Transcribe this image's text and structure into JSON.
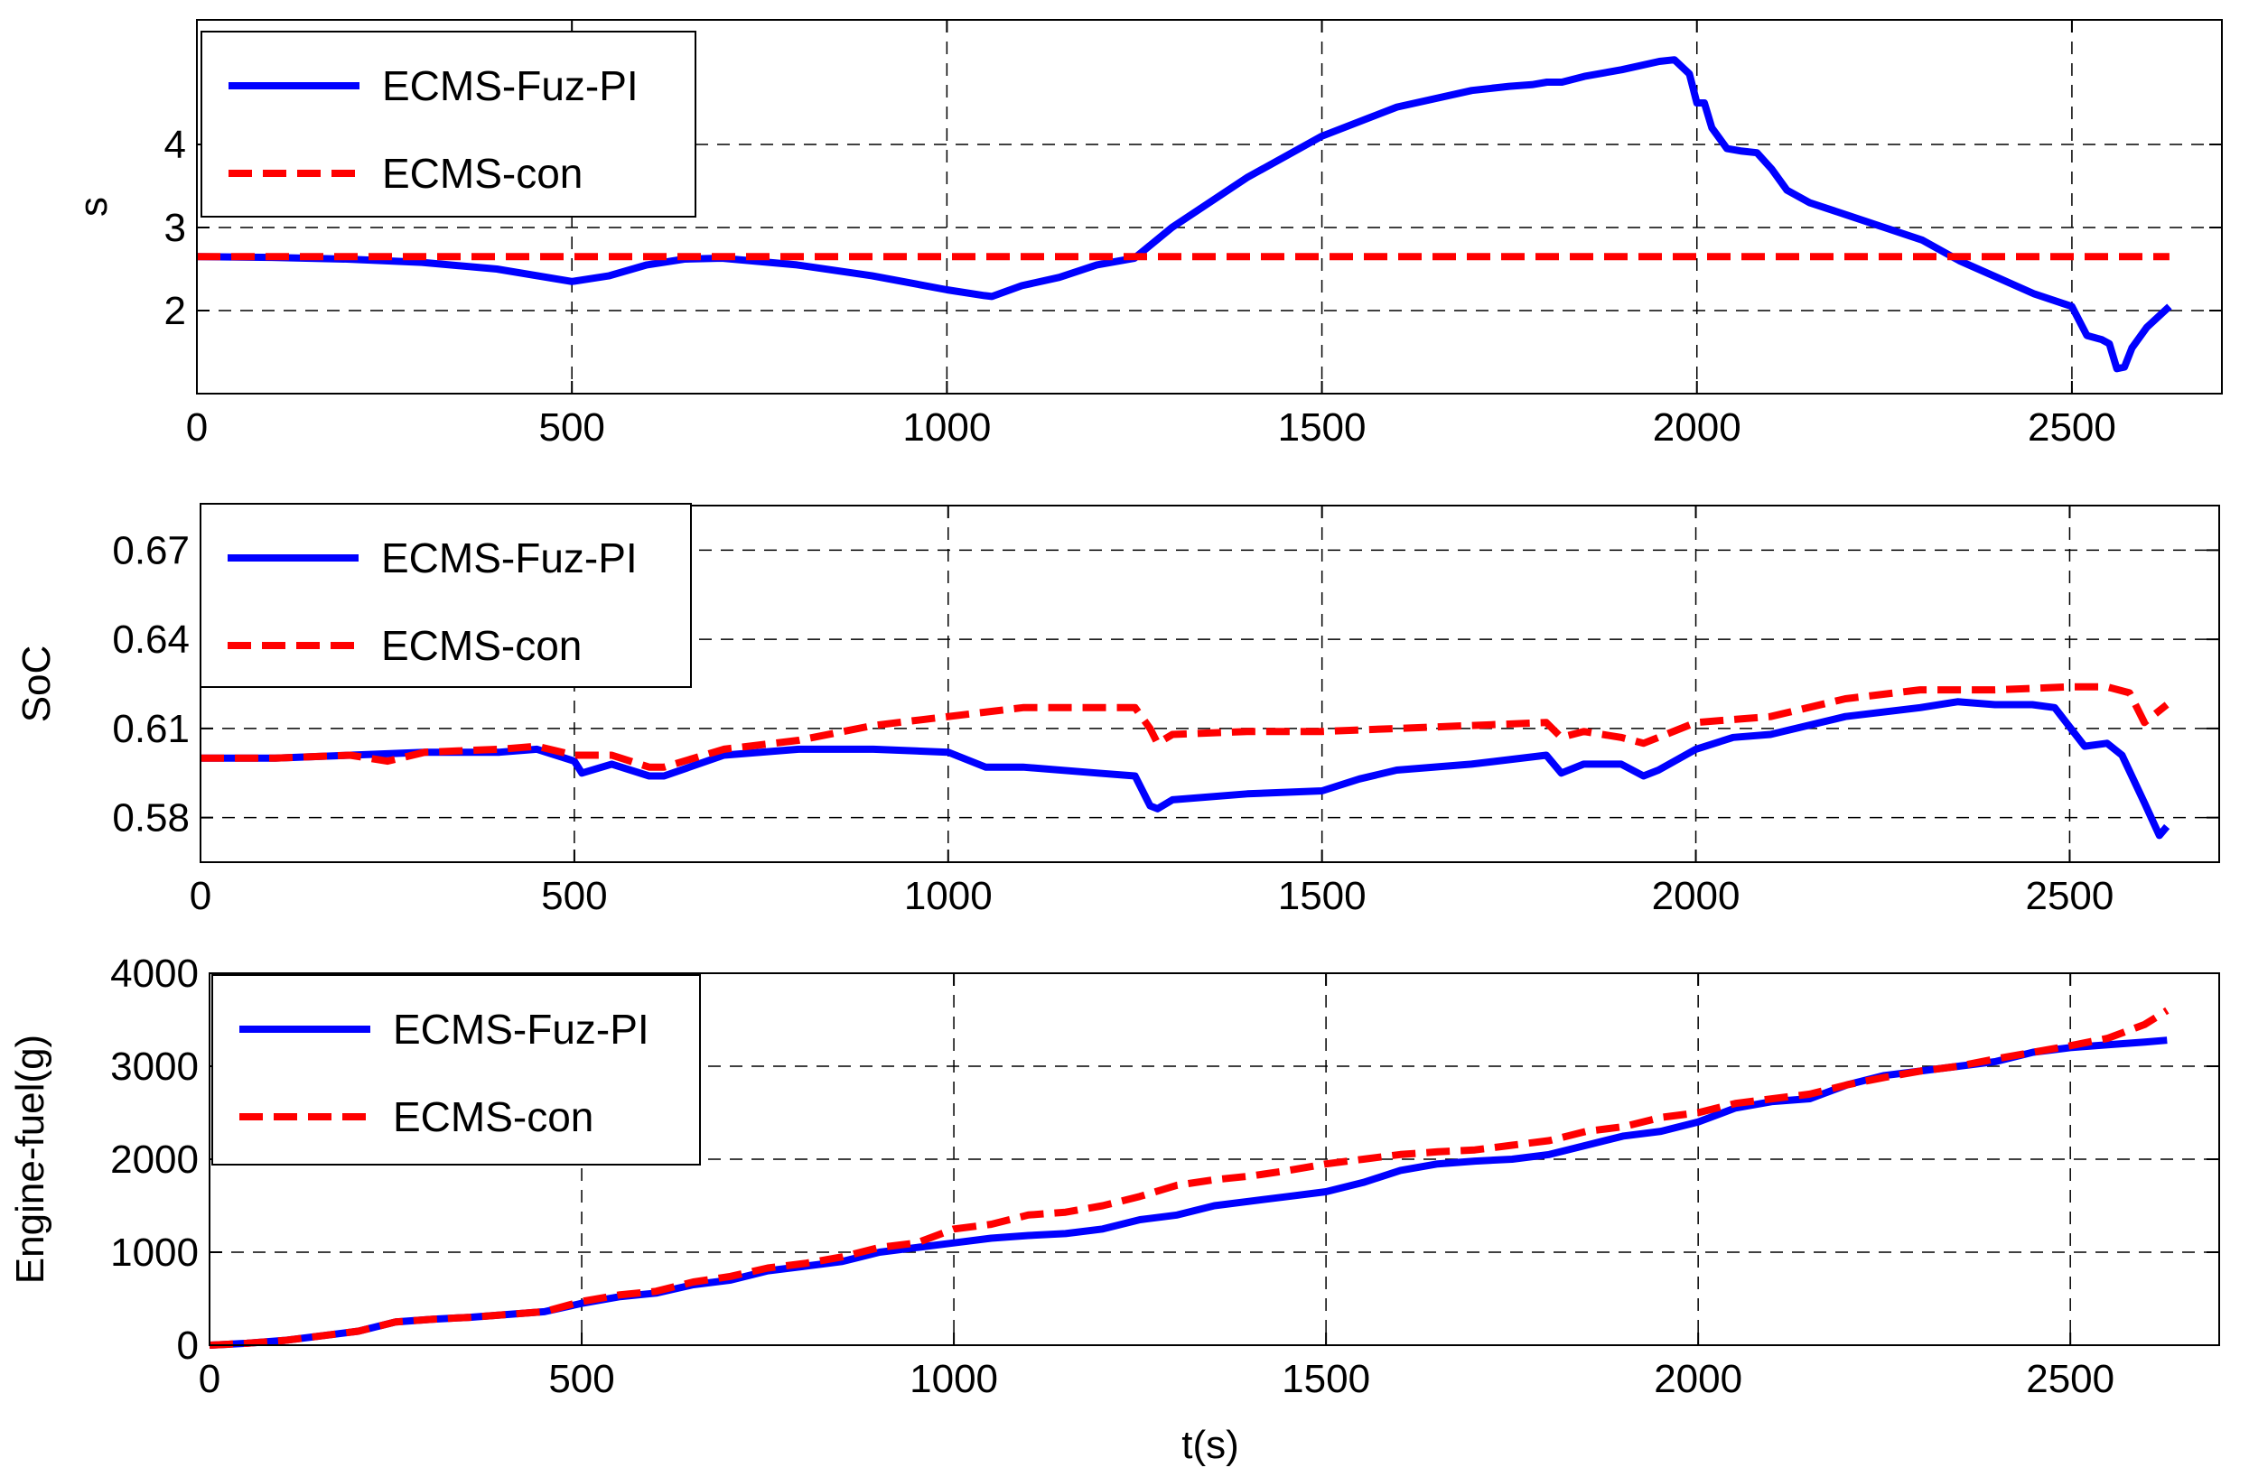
{
  "figure": {
    "xlabel": "t(s)"
  },
  "colors": {
    "fuz": "#0000ff",
    "con": "#ff0000",
    "grid": "#000000",
    "axes": "#000000",
    "background": "#ffffff"
  },
  "chart_data": [
    {
      "type": "line",
      "title": "",
      "xlabel": "",
      "ylabel": "s",
      "xlim": [
        0,
        2700
      ],
      "ylim": [
        1,
        5.5
      ],
      "xticks": [
        0,
        500,
        1000,
        1500,
        2000,
        2500
      ],
      "xtick_labels": [
        "0",
        "500",
        "1000",
        "1500",
        "2000",
        "2500"
      ],
      "yticks": [
        2,
        3,
        4
      ],
      "ytick_labels": [
        "2",
        "3",
        "4"
      ],
      "grid": true,
      "legend": {
        "position": "top-left",
        "entries": [
          "ECMS-Fuz-PI",
          "ECMS-con"
        ]
      },
      "series": [
        {
          "name": "ECMS-Fuz-PI",
          "style": "solid",
          "x": [
            0,
            100,
            200,
            300,
            400,
            500,
            550,
            600,
            650,
            700,
            800,
            900,
            1000,
            1050,
            1060,
            1100,
            1150,
            1200,
            1250,
            1300,
            1400,
            1500,
            1600,
            1700,
            1750,
            1780,
            1800,
            1820,
            1850,
            1900,
            1950,
            1970,
            1990,
            2000,
            2010,
            2020,
            2040,
            2060,
            2080,
            2100,
            2120,
            2150,
            2200,
            2250,
            2300,
            2350,
            2400,
            2450,
            2500,
            2520,
            2540,
            2550,
            2560,
            2570,
            2580,
            2600,
            2630
          ],
          "y": [
            2.65,
            2.64,
            2.62,
            2.58,
            2.5,
            2.35,
            2.42,
            2.55,
            2.62,
            2.63,
            2.55,
            2.42,
            2.25,
            2.18,
            2.17,
            2.3,
            2.4,
            2.55,
            2.63,
            3.0,
            3.6,
            4.1,
            4.45,
            4.65,
            4.7,
            4.72,
            4.75,
            4.75,
            4.82,
            4.9,
            5.0,
            5.02,
            4.85,
            4.5,
            4.5,
            4.2,
            3.95,
            3.92,
            3.9,
            3.7,
            3.45,
            3.3,
            3.15,
            3.0,
            2.85,
            2.6,
            2.4,
            2.2,
            2.05,
            1.7,
            1.65,
            1.6,
            1.3,
            1.32,
            1.55,
            1.8,
            2.05
          ]
        },
        {
          "name": "ECMS-con",
          "style": "dashed",
          "x": [
            0,
            2630
          ],
          "y": [
            2.65,
            2.65
          ]
        }
      ]
    },
    {
      "type": "line",
      "title": "",
      "xlabel": "",
      "ylabel": "SoC",
      "xlim": [
        0,
        2700
      ],
      "ylim": [
        0.565,
        0.685
      ],
      "xticks": [
        0,
        500,
        1000,
        1500,
        2000,
        2500
      ],
      "xtick_labels": [
        "0",
        "500",
        "1000",
        "1500",
        "2000",
        "2500"
      ],
      "yticks": [
        0.58,
        0.61,
        0.64,
        0.67
      ],
      "ytick_labels": [
        "0.58",
        "0.61",
        "0.64",
        "0.67"
      ],
      "grid": true,
      "legend": {
        "position": "top-left",
        "entries": [
          "ECMS-Fuz-PI",
          "ECMS-con"
        ]
      },
      "series": [
        {
          "name": "ECMS-Fuz-PI",
          "style": "solid",
          "x": [
            0,
            100,
            200,
            300,
            400,
            450,
            500,
            510,
            550,
            600,
            620,
            700,
            800,
            900,
            1000,
            1050,
            1100,
            1200,
            1250,
            1270,
            1280,
            1300,
            1400,
            1500,
            1550,
            1600,
            1700,
            1800,
            1820,
            1850,
            1900,
            1930,
            1950,
            2000,
            2050,
            2100,
            2200,
            2300,
            2350,
            2400,
            2450,
            2480,
            2520,
            2550,
            2570,
            2600,
            2620,
            2630
          ],
          "y": [
            0.6,
            0.6,
            0.601,
            0.602,
            0.602,
            0.603,
            0.599,
            0.595,
            0.598,
            0.594,
            0.594,
            0.601,
            0.603,
            0.603,
            0.602,
            0.597,
            0.597,
            0.595,
            0.594,
            0.584,
            0.583,
            0.586,
            0.588,
            0.589,
            0.593,
            0.596,
            0.598,
            0.601,
            0.595,
            0.598,
            0.598,
            0.594,
            0.596,
            0.603,
            0.607,
            0.608,
            0.614,
            0.617,
            0.619,
            0.618,
            0.618,
            0.617,
            0.604,
            0.605,
            0.601,
            0.585,
            0.574,
            0.577
          ]
        },
        {
          "name": "ECMS-con",
          "style": "dashed",
          "x": [
            0,
            100,
            200,
            250,
            300,
            400,
            450,
            500,
            550,
            600,
            620,
            700,
            800,
            900,
            1000,
            1100,
            1200,
            1250,
            1270,
            1280,
            1300,
            1400,
            1500,
            1600,
            1700,
            1800,
            1820,
            1850,
            1900,
            1930,
            1950,
            2000,
            2100,
            2200,
            2300,
            2400,
            2500,
            2550,
            2580,
            2600,
            2630
          ],
          "y": [
            0.6,
            0.6,
            0.601,
            0.599,
            0.602,
            0.603,
            0.604,
            0.601,
            0.601,
            0.597,
            0.597,
            0.603,
            0.606,
            0.611,
            0.614,
            0.617,
            0.617,
            0.617,
            0.61,
            0.605,
            0.608,
            0.609,
            0.609,
            0.61,
            0.611,
            0.612,
            0.607,
            0.609,
            0.607,
            0.605,
            0.607,
            0.612,
            0.614,
            0.62,
            0.623,
            0.623,
            0.624,
            0.624,
            0.622,
            0.612,
            0.618
          ]
        }
      ]
    },
    {
      "type": "line",
      "title": "",
      "xlabel": "t(s)",
      "ylabel": "Engine-fuel(g)",
      "xlim": [
        0,
        2700
      ],
      "ylim": [
        0,
        4000
      ],
      "xticks": [
        0,
        500,
        1000,
        1500,
        2000,
        2500
      ],
      "xtick_labels": [
        "0",
        "500",
        "1000",
        "1500",
        "2000",
        "2500"
      ],
      "yticks": [
        0,
        1000,
        2000,
        3000,
        4000
      ],
      "ytick_labels": [
        "0",
        "1000",
        "2000",
        "3000",
        "4000"
      ],
      "grid": true,
      "legend": {
        "position": "top-left",
        "entries": [
          "ECMS-Fuz-PI",
          "ECMS-con"
        ]
      },
      "series": [
        {
          "name": "ECMS-Fuz-PI",
          "style": "solid",
          "x": [
            0,
            50,
            100,
            150,
            200,
            250,
            300,
            350,
            400,
            450,
            500,
            550,
            600,
            650,
            700,
            750,
            800,
            850,
            900,
            950,
            1000,
            1050,
            1100,
            1150,
            1200,
            1250,
            1300,
            1350,
            1400,
            1450,
            1500,
            1550,
            1600,
            1650,
            1700,
            1750,
            1800,
            1850,
            1900,
            1950,
            2000,
            2050,
            2100,
            2150,
            2200,
            2250,
            2300,
            2350,
            2400,
            2450,
            2500,
            2550,
            2600,
            2630
          ],
          "y": [
            0,
            20,
            50,
            100,
            150,
            250,
            280,
            300,
            330,
            360,
            450,
            520,
            560,
            650,
            700,
            800,
            850,
            900,
            1000,
            1050,
            1100,
            1150,
            1180,
            1200,
            1250,
            1350,
            1400,
            1500,
            1550,
            1600,
            1650,
            1750,
            1880,
            1950,
            1980,
            2000,
            2050,
            2150,
            2250,
            2300,
            2400,
            2550,
            2620,
            2650,
            2800,
            2900,
            2950,
            3000,
            3050,
            3150,
            3200,
            3230,
            3260,
            3280
          ]
        },
        {
          "name": "ECMS-con",
          "style": "dashed",
          "x": [
            0,
            50,
            100,
            150,
            200,
            250,
            300,
            350,
            400,
            450,
            500,
            550,
            600,
            650,
            700,
            750,
            800,
            850,
            900,
            950,
            1000,
            1050,
            1100,
            1150,
            1200,
            1250,
            1300,
            1350,
            1400,
            1450,
            1500,
            1550,
            1600,
            1650,
            1700,
            1750,
            1800,
            1850,
            1900,
            1950,
            2000,
            2050,
            2100,
            2150,
            2200,
            2250,
            2300,
            2350,
            2400,
            2450,
            2500,
            2550,
            2600,
            2630
          ],
          "y": [
            0,
            20,
            50,
            100,
            150,
            250,
            280,
            300,
            330,
            360,
            470,
            540,
            580,
            680,
            740,
            830,
            880,
            950,
            1050,
            1100,
            1250,
            1300,
            1400,
            1430,
            1500,
            1600,
            1720,
            1780,
            1820,
            1880,
            1950,
            2000,
            2050,
            2080,
            2100,
            2150,
            2200,
            2300,
            2350,
            2450,
            2500,
            2600,
            2650,
            2700,
            2800,
            2880,
            2950,
            3000,
            3080,
            3150,
            3220,
            3300,
            3450,
            3600
          ]
        }
      ]
    }
  ]
}
